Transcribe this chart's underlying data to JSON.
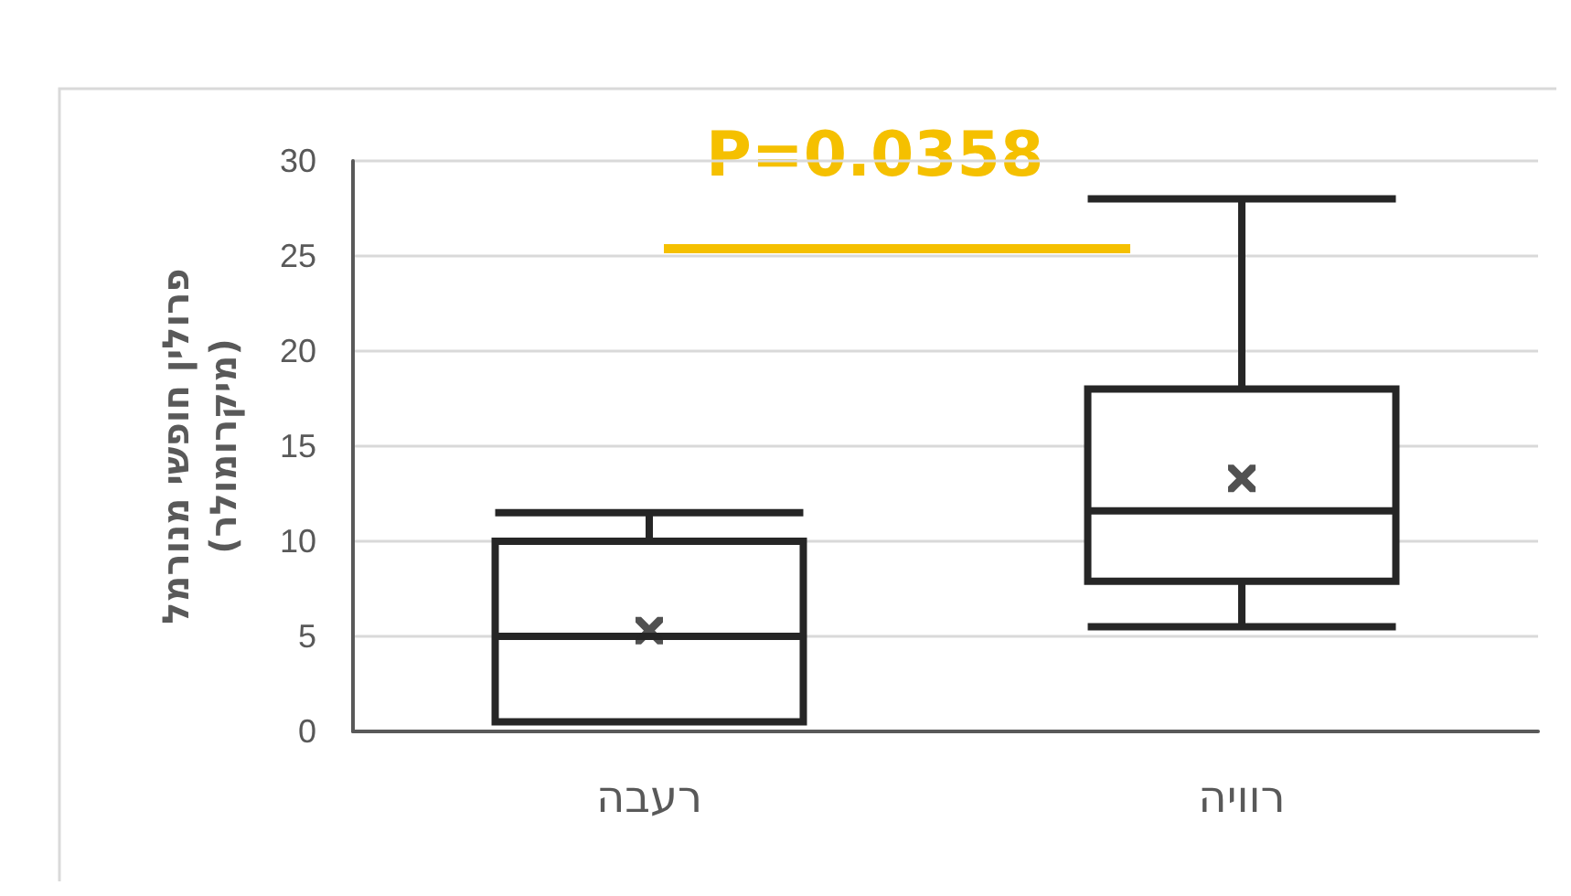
{
  "chart_data": {
    "type": "box",
    "categories": [
      "רעבה",
      "רוויה"
    ],
    "ylabel": "פרולין חופשי מנורמל\n(מיקרומולר)",
    "boxes": [
      {
        "low": 0.5,
        "q1": 0.5,
        "median": 5,
        "q3": 10,
        "high": 11.5,
        "mean": 5.3
      },
      {
        "low": 5.5,
        "q1": 7.9,
        "median": 11.6,
        "q3": 18,
        "high": 28,
        "mean": 13.3
      }
    ],
    "color": "#262626",
    "ylim": [
      0,
      30
    ],
    "yticks": [
      0,
      5,
      10,
      15,
      20,
      25,
      30
    ],
    "grid": "y",
    "marker": "cross",
    "annotations": [
      "P=0.0358"
    ]
  }
}
